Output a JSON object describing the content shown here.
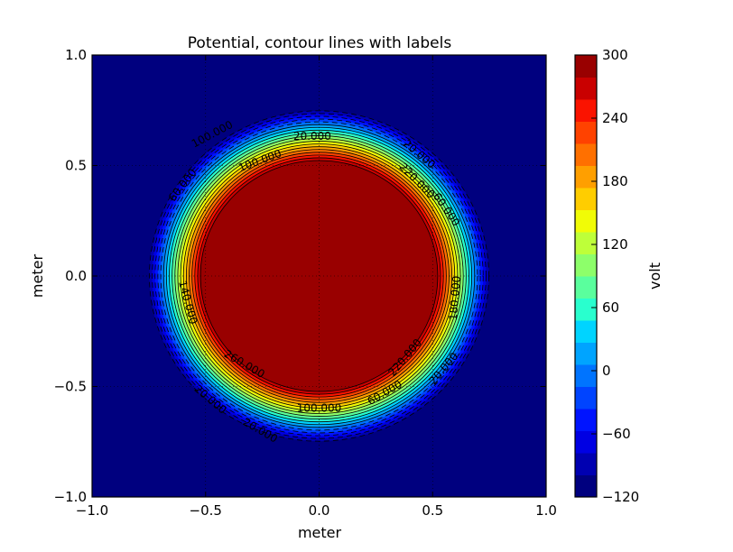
{
  "chart_data": {
    "type": "contour",
    "title": "Potential, contour lines with labels",
    "xlabel": "meter",
    "ylabel": "meter",
    "xlim": [
      -1.0,
      1.0
    ],
    "ylim": [
      -1.0,
      1.0
    ],
    "x_ticks": [
      "−1.0",
      "−0.5",
      "0.0",
      "0.5",
      "1.0"
    ],
    "y_ticks": [
      "−1.0",
      "−0.5",
      "0.0",
      "0.5",
      "1.0"
    ],
    "x_tick_values": [
      -1.0,
      -0.5,
      0.0,
      0.5,
      1.0
    ],
    "y_tick_values": [
      -1.0,
      -0.5,
      0.0,
      0.5,
      1.0
    ],
    "grid": true,
    "colorbar": {
      "label": "volt",
      "range": [
        -120,
        300
      ],
      "tick_values": [
        300,
        240,
        180,
        120,
        60,
        0,
        -60,
        -120
      ],
      "tick_labels": [
        "300",
        "240",
        "180",
        "120",
        "60",
        "0",
        "−60",
        "−120"
      ],
      "colors": [
        "#00007f",
        "#0000b1",
        "#0000e3",
        "#0014ff",
        "#0044ff",
        "#0074ff",
        "#00a4ff",
        "#00d4ff",
        "#29ffce",
        "#5aff9d",
        "#8dff6a",
        "#beff39",
        "#f1fc06",
        "#ffcd00",
        "#ff9f00",
        "#ff7000",
        "#ff4200",
        "#fa1300",
        "#c90000",
        "#990000"
      ]
    },
    "field": {
      "center": [
        0.0,
        0.0
      ],
      "inner_value": 300,
      "outer_value": -120,
      "inner_radius": 0.51,
      "outer_radius": 0.76
    },
    "contour_labels": [
      {
        "text": "20.000",
        "x": -0.03,
        "y": 0.63,
        "rot": 0
      },
      {
        "text": "100.000",
        "x": -0.26,
        "y": 0.52,
        "rot": -20
      },
      {
        "text": "100.000",
        "x": -0.47,
        "y": 0.64,
        "rot": -28
      },
      {
        "text": "60.000",
        "x": -0.6,
        "y": 0.41,
        "rot": -52
      },
      {
        "text": "20.000",
        "x": 0.44,
        "y": 0.55,
        "rot": 40
      },
      {
        "text": "220.000",
        "x": 0.43,
        "y": 0.43,
        "rot": 45
      },
      {
        "text": "60.000",
        "x": 0.56,
        "y": 0.3,
        "rot": 55
      },
      {
        "text": "140.000",
        "x": -0.58,
        "y": -0.12,
        "rot": 75
      },
      {
        "text": "180.000",
        "x": 0.6,
        "y": -0.1,
        "rot": -85
      },
      {
        "text": "220.000",
        "x": 0.38,
        "y": -0.37,
        "rot": -50
      },
      {
        "text": "20.000",
        "x": 0.55,
        "y": -0.42,
        "rot": -50
      },
      {
        "text": "60.000",
        "x": 0.29,
        "y": -0.53,
        "rot": -30
      },
      {
        "text": "100.000",
        "x": 0.0,
        "y": -0.6,
        "rot": 0
      },
      {
        "text": "260.000",
        "x": -0.33,
        "y": -0.4,
        "rot": 30
      },
      {
        "text": "20.000",
        "x": -0.48,
        "y": -0.56,
        "rot": 40
      },
      {
        "text": "20.000",
        "x": -0.26,
        "y": -0.7,
        "rot": 30
      }
    ]
  }
}
